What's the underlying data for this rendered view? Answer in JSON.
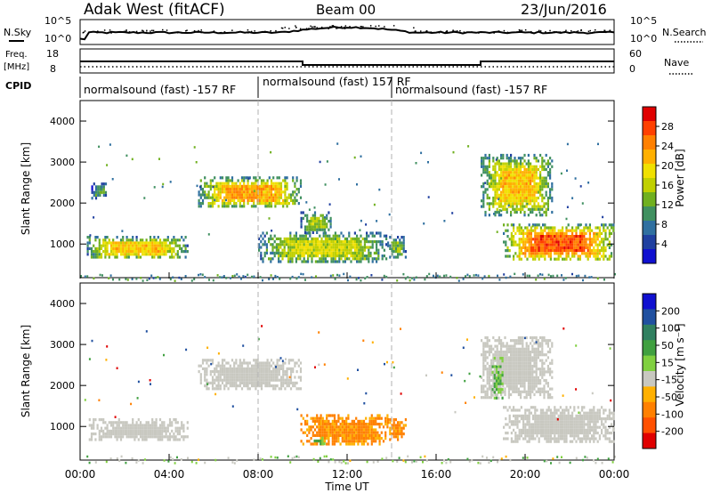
{
  "header": {
    "title": "Adak West (fitACF)",
    "beam": "Beam 00",
    "date": "23/Jun/2016"
  },
  "noise_panel": {
    "left_label": "N.Sky",
    "right_label": "N.Search",
    "left_ticks": [
      "10^5",
      "10^0"
    ],
    "right_ticks": [
      "10^5",
      "10^0"
    ]
  },
  "freq_panel": {
    "left_label_line1": "Freq.",
    "left_label_line2": "[MHz]",
    "right_label": "Nave",
    "left_ticks": [
      "18",
      "8"
    ],
    "right_ticks": [
      "60",
      "0"
    ]
  },
  "cpid": {
    "label": "CPID",
    "segments": [
      {
        "text": "normalsound (fast) -157 RF",
        "start_hour": 0
      },
      {
        "text": "normalsound (fast) 157 RF",
        "start_hour": 8
      },
      {
        "text": "normalsound (fast) -157 RF",
        "start_hour": 14
      }
    ]
  },
  "power_panel": {
    "ylabel": "Slant Range [km]",
    "yticks": [
      "4000",
      "3000",
      "2000",
      "1000"
    ],
    "colorbar_label": "Power [dB]",
    "colorbar_ticks": [
      "28",
      "24",
      "20",
      "16",
      "12",
      "8",
      "4"
    ],
    "colorbar_colors": [
      "#e00000",
      "#ff4000",
      "#ff8000",
      "#ffb000",
      "#f0e000",
      "#c0d000",
      "#70b020",
      "#409060",
      "#3070a0",
      "#2040a0",
      "#1010d0"
    ]
  },
  "velocity_panel": {
    "ylabel": "Slant Range [km]",
    "yticks": [
      "4000",
      "3000",
      "2000",
      "1000"
    ],
    "colorbar_label": "Velocity [m s⁻¹]",
    "colorbar_ticks": [
      "200",
      "100",
      "50",
      "15",
      "-15",
      "-50",
      "-100",
      "-200"
    ],
    "colorbar_colors": [
      "#1010d0",
      "#2050a0",
      "#308060",
      "#40a040",
      "#80d040",
      "#c8c8c0",
      "#ffb000",
      "#ff8000",
      "#ff5000",
      "#e00000"
    ]
  },
  "x_axis": {
    "label": "Time UT",
    "ticks": [
      "00:00",
      "04:00",
      "08:00",
      "12:00",
      "16:00",
      "20:00",
      "00:00"
    ]
  },
  "chart_data": {
    "type": "heatmap",
    "title": "Adak West (fitACF)",
    "subtitle": "Beam 00",
    "date": "23/Jun/2016",
    "xlabel": "Time UT",
    "ylabel": "Slant Range [km]",
    "xlim_hours": [
      0,
      24
    ],
    "ylim_km": [
      180,
      4500
    ],
    "frequency_mhz": [
      {
        "from_hour": 0,
        "to_hour": 10,
        "value": 12.5
      },
      {
        "from_hour": 10,
        "to_hour": 18,
        "value": 10.5
      },
      {
        "from_hour": 18,
        "to_hour": 24,
        "value": 12.5
      }
    ],
    "nave_approx": 3,
    "power_regions_db": [
      {
        "t": [
          0.3,
          4.8
        ],
        "range_km": [
          650,
          1200
        ],
        "peak_db": 20
      },
      {
        "t": [
          0.5,
          1.2
        ],
        "range_km": [
          2150,
          2500
        ],
        "peak_db": 10
      },
      {
        "t": [
          5.3,
          9.9
        ],
        "range_km": [
          1900,
          2650
        ],
        "peak_db": 22
      },
      {
        "t": [
          8.0,
          13.8
        ],
        "range_km": [
          550,
          1300
        ],
        "peak_db": 16
      },
      {
        "t": [
          9.9,
          11.3
        ],
        "range_km": [
          1300,
          1800
        ],
        "peak_db": 14
      },
      {
        "t": [
          13.8,
          14.6
        ],
        "range_km": [
          650,
          1200
        ],
        "peak_db": 12
      },
      {
        "t": [
          18.0,
          21.2
        ],
        "range_km": [
          1700,
          3200
        ],
        "peak_db": 20
      },
      {
        "t": [
          19.0,
          24.0
        ],
        "range_km": [
          600,
          1500
        ],
        "peak_db": 26
      }
    ],
    "velocity_regions_ms": [
      {
        "t": [
          0.3,
          4.8
        ],
        "range_km": [
          650,
          1200
        ],
        "value": 0
      },
      {
        "t": [
          5.3,
          9.9
        ],
        "range_km": [
          1900,
          2650
        ],
        "value": 0
      },
      {
        "t": [
          9.9,
          13.8
        ],
        "range_km": [
          550,
          1300
        ],
        "value": -60
      },
      {
        "t": [
          10.5,
          11.0
        ],
        "range_km": [
          600,
          750
        ],
        "value": 40
      },
      {
        "t": [
          13.8,
          14.6
        ],
        "range_km": [
          650,
          1200
        ],
        "value": -60
      },
      {
        "t": [
          18.0,
          21.2
        ],
        "range_km": [
          1700,
          3200
        ],
        "value": 0
      },
      {
        "t": [
          18.5,
          19.0
        ],
        "range_km": [
          1700,
          2700
        ],
        "value": 30
      },
      {
        "t": [
          19.0,
          24.0
        ],
        "range_km": [
          600,
          1500
        ],
        "value": 0
      }
    ]
  }
}
